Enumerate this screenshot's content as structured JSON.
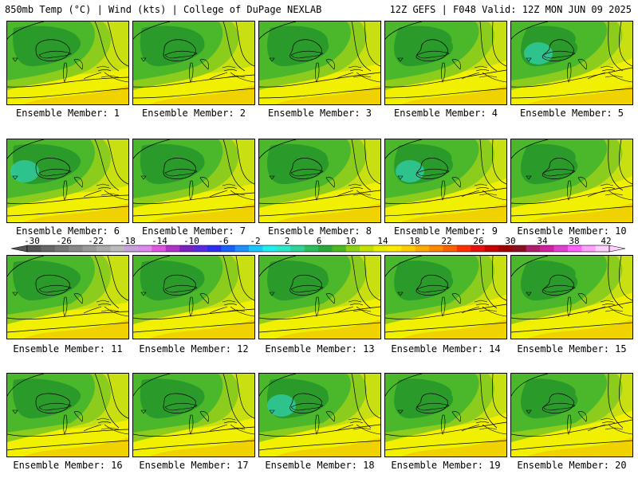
{
  "header": {
    "title_left": "850mb Temp (°C) | Wind (kts) | College of DuPage NEXLAB",
    "title_right": "12Z GEFS | F048 Valid: 12Z MON JUN 09 2025"
  },
  "panels": [
    {
      "label": "Ensemble Member: 1"
    },
    {
      "label": "Ensemble Member: 2"
    },
    {
      "label": "Ensemble Member: 3"
    },
    {
      "label": "Ensemble Member: 4"
    },
    {
      "label": "Ensemble Member: 5"
    },
    {
      "label": "Ensemble Member: 6"
    },
    {
      "label": "Ensemble Member: 7"
    },
    {
      "label": "Ensemble Member: 8"
    },
    {
      "label": "Ensemble Member: 9"
    },
    {
      "label": "Ensemble Member: 10"
    },
    {
      "label": "Ensemble Member: 11"
    },
    {
      "label": "Ensemble Member: 12"
    },
    {
      "label": "Ensemble Member: 13"
    },
    {
      "label": "Ensemble Member: 14"
    },
    {
      "label": "Ensemble Member: 15"
    },
    {
      "label": "Ensemble Member: 16"
    },
    {
      "label": "Ensemble Member: 17"
    },
    {
      "label": "Ensemble Member: 18"
    },
    {
      "label": "Ensemble Member: 19"
    },
    {
      "label": "Ensemble Member: 20"
    }
  ],
  "colorbar": {
    "tick_labels": [
      "-30",
      "-26",
      "-22",
      "-18",
      "-14",
      "-10",
      "-6",
      "-2",
      "2",
      "6",
      "10",
      "14",
      "18",
      "22",
      "26",
      "30",
      "34",
      "38",
      "42"
    ],
    "colors": [
      "#555555",
      "#666666",
      "#777777",
      "#888888",
      "#999999",
      "#aaaaaa",
      "#bbbbbb",
      "#c9a0dc",
      "#dd88ee",
      "#e055e0",
      "#b030c8",
      "#7a22c0",
      "#5a2ae0",
      "#2d2df0",
      "#1a60ff",
      "#1e90ff",
      "#19c8ff",
      "#22eeee",
      "#2ee6c8",
      "#2fd39a",
      "#2bbf5c",
      "#2aa83a",
      "#4cb820",
      "#8ed214",
      "#c4e000",
      "#e8ec00",
      "#ffe800",
      "#ffcc00",
      "#ffaa00",
      "#ff8800",
      "#ff6000",
      "#ff3000",
      "#e81010",
      "#c80000",
      "#a00000",
      "#8a1020",
      "#b01e6e",
      "#d020a0",
      "#e040d0",
      "#ff60ff",
      "#ffa0ff",
      "#ffd0ff"
    ]
  },
  "map_colors": {
    "dark_green": "#2a9a2a",
    "mid_green": "#4ab82a",
    "light_green": "#8ccc1c",
    "yellow_green": "#c8e012",
    "yellow": "#f0f000",
    "gold": "#f0d200",
    "teal": "#2fc898"
  }
}
